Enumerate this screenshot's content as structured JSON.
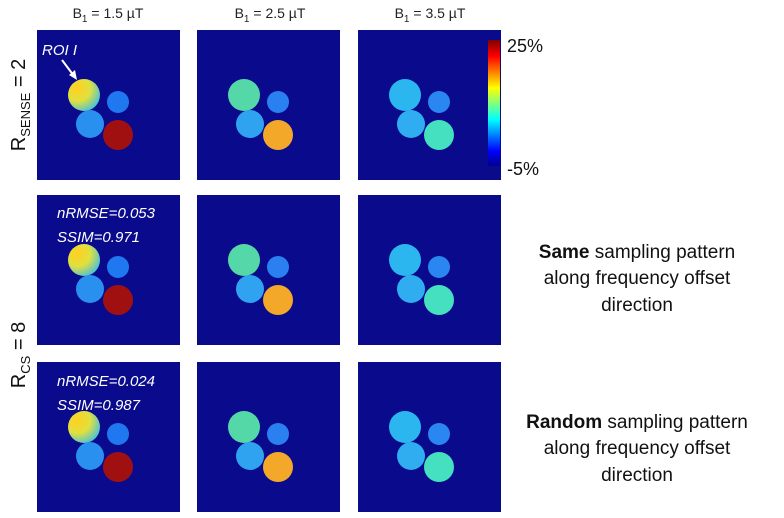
{
  "columns": [
    {
      "base": "B",
      "sub": "1",
      "rest": " = 1.5 µT"
    },
    {
      "base": "B",
      "sub": "1",
      "rest": " = 2.5 µT"
    },
    {
      "base": "B",
      "sub": "1",
      "rest": " = 3.5 µT"
    }
  ],
  "rows": {
    "sense": {
      "base": "R",
      "sub": "SENSE",
      "rest": " = 2"
    },
    "cs": {
      "base": "R",
      "sub": "CS",
      "rest": " = 8"
    }
  },
  "roi_label": "ROI I",
  "colorbar": {
    "max_label": "25%",
    "min_label": "-5%"
  },
  "metrics": [
    {
      "nrmse": "nRMSE=0.053",
      "ssim": "SSIM=0.971"
    },
    {
      "nrmse": "nRMSE=0.024",
      "ssim": "SSIM=0.987"
    }
  ],
  "descriptions": [
    {
      "bold": "Same",
      "line1": " sampling pattern",
      "line2": "along frequency offset",
      "line3": "direction"
    },
    {
      "bold": "Random",
      "line1": " sampling pattern",
      "line2": "along frequency offset",
      "line3": "direction"
    }
  ]
}
